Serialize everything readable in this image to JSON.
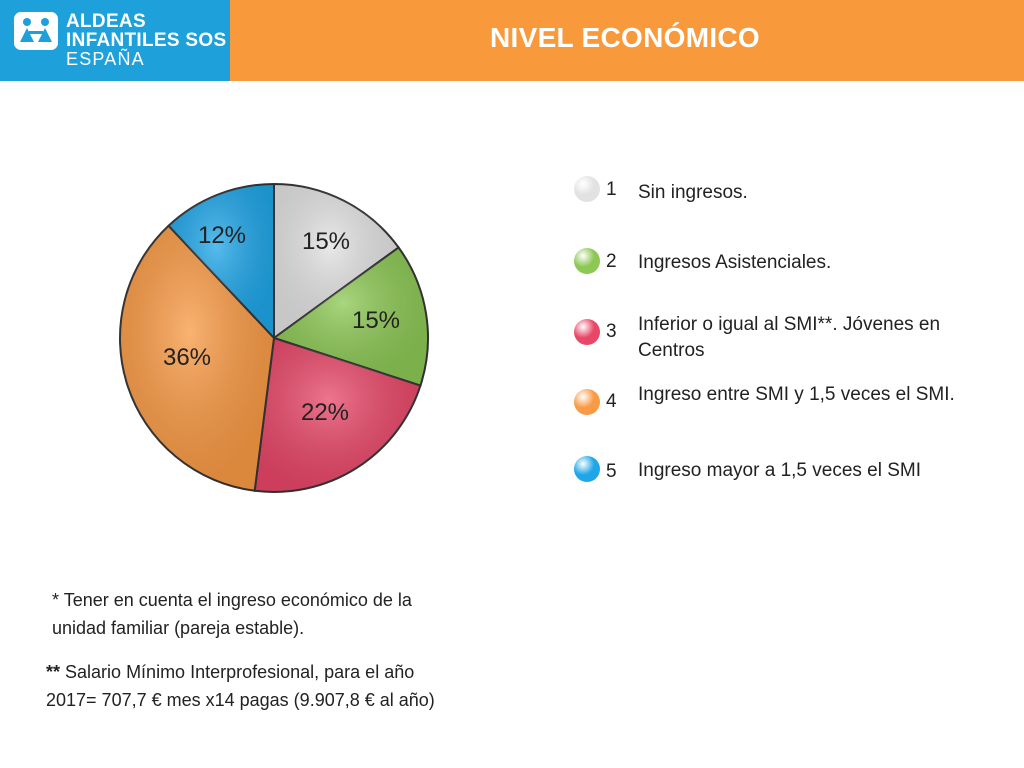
{
  "header": {
    "logo_lines": [
      "ALDEAS",
      "INFANTILES SOS",
      "ESPAÑA"
    ],
    "title": "NIVEL ECONÓMICO",
    "colors": {
      "bar": "#f89a3b",
      "logo_bg": "#1ea1db"
    }
  },
  "chart_data": {
    "type": "pie",
    "slices": [
      {
        "label": "15%",
        "value": 15,
        "color": "#e2e2e2",
        "key": "1"
      },
      {
        "label": "15%",
        "value": 15,
        "color": "#8cc854",
        "key": "2"
      },
      {
        "label": "22%",
        "value": 22,
        "color": "#e84768",
        "key": "3"
      },
      {
        "label": "36%",
        "value": 36,
        "color": "#f99a44",
        "key": "4"
      },
      {
        "label": "12%",
        "value": 12,
        "color": "#1fa6e8",
        "key": "5"
      }
    ]
  },
  "legend": [
    {
      "num": "1",
      "text": "Sin ingresos.",
      "color": "#e2e2e2"
    },
    {
      "num": "2",
      "text": "Ingresos Asistenciales.",
      "color": "#8cc854"
    },
    {
      "num": "3",
      "text": "Inferior o igual al SMI**. Jóvenes en Centros",
      "color": "#e84768"
    },
    {
      "num": "4",
      "text": "Ingreso entre SMI y 1,5 veces el SMI.",
      "color": "#f99a44"
    },
    {
      "num": "5",
      "text": "Ingreso mayor a 1,5 veces el SMI",
      "color": "#1fa6e8"
    }
  ],
  "notes": {
    "n1_star": "*",
    "n1_text": "Tener en cuenta el ingreso económico de la unidad familiar (pareja estable).",
    "n2_star": "**",
    "n2_text": "Salario Mínimo Interprofesional, para el año 2017= 707,7 € mes x14 pagas (9.907,8 € al año)"
  }
}
